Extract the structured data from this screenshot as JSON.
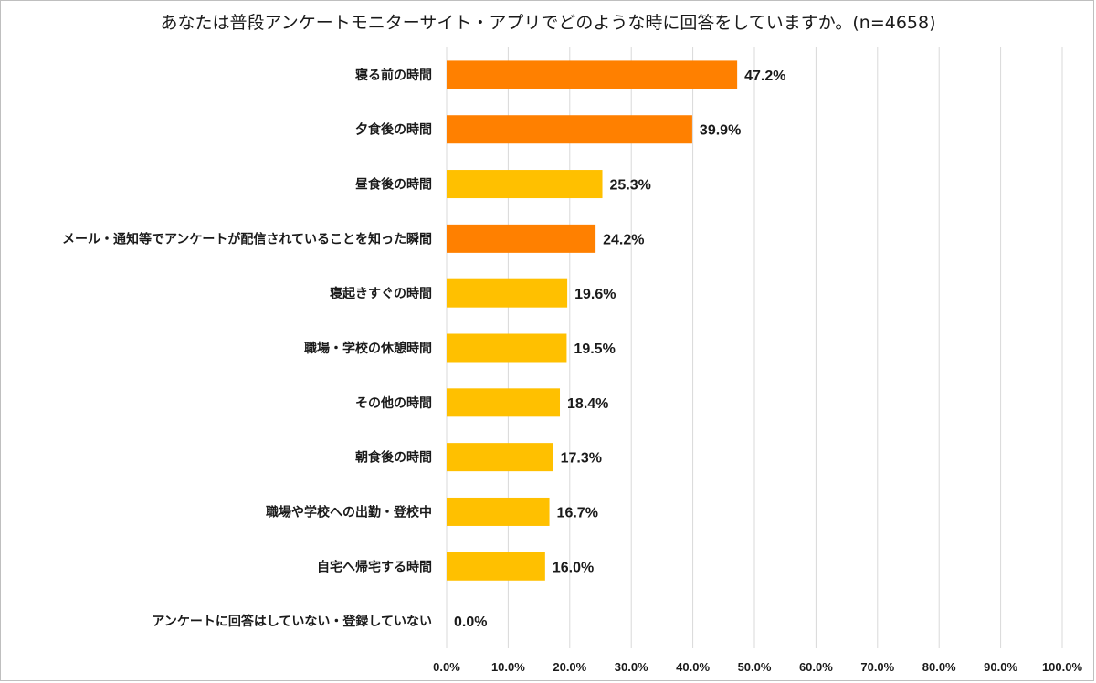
{
  "chart_data": {
    "type": "bar",
    "orientation": "horizontal",
    "title": "あなたは普段アンケートモニターサイト・アプリでどのような時に回答をしていますか。(n=4658)",
    "categories": [
      "寝る前の時間",
      "夕食後の時間",
      "昼食後の時間",
      "メール・通知等でアンケートが配信されていることを知った瞬間",
      "寝起きすぐの時間",
      "職場・学校の休憩時間",
      "その他の時間",
      "朝食後の時間",
      "職場や学校への出勤・登校中",
      "自宅へ帰宅する時間",
      "アンケートに回答はしていない・登録していない"
    ],
    "values": [
      47.2,
      39.9,
      25.3,
      24.2,
      19.6,
      19.5,
      18.4,
      17.3,
      16.7,
      16.0,
      0.0
    ],
    "value_labels": [
      "47.2%",
      "39.9%",
      "25.3%",
      "24.2%",
      "19.6%",
      "19.5%",
      "18.4%",
      "17.3%",
      "16.7%",
      "16.0%",
      "0.0%"
    ],
    "highlight": [
      true,
      true,
      false,
      true,
      false,
      false,
      false,
      false,
      false,
      false,
      false
    ],
    "xlim": [
      0,
      100
    ],
    "xticks": [
      "0.0%",
      "10.0%",
      "20.0%",
      "30.0%",
      "40.0%",
      "50.0%",
      "60.0%",
      "70.0%",
      "80.0%",
      "90.0%",
      "100.0%"
    ],
    "grid": true,
    "colors": {
      "highlight": "#ff8000",
      "normal": "#ffc000",
      "grid": "#d9d9d9"
    }
  }
}
